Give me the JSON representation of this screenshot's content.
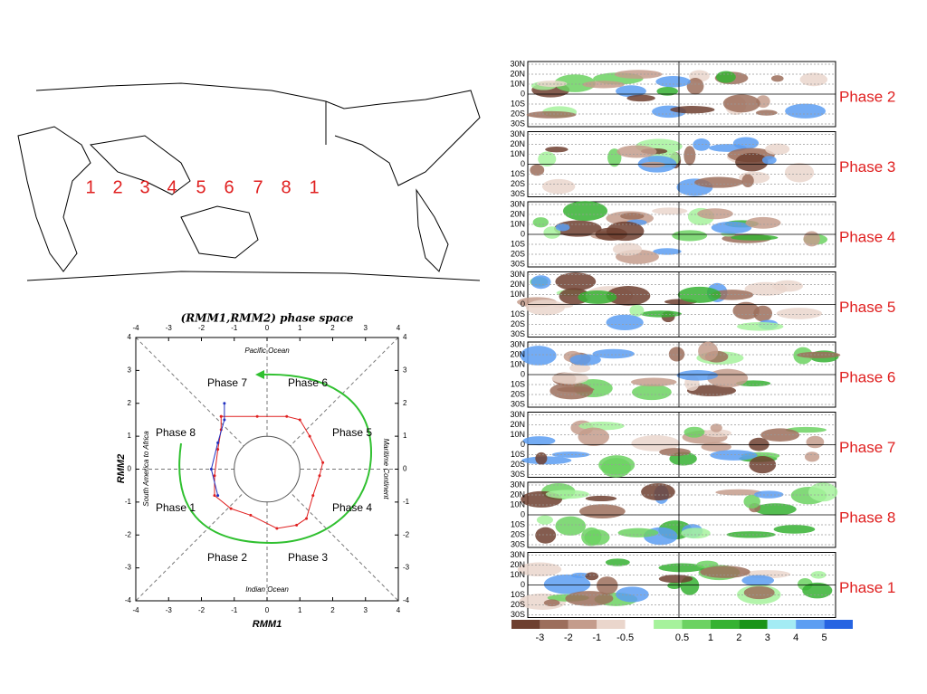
{
  "map_phase_numbers": [
    "1",
    "2",
    "3",
    "4",
    "5",
    "6",
    "7",
    "8",
    "1"
  ],
  "panel_labels": [
    "Phase 2",
    "Phase 3",
    "Phase 4",
    "Phase 5",
    "Phase 6",
    "Phase 7",
    "Phase 8",
    "Phase 1"
  ],
  "panel_lat_labels": [
    "30N",
    "20N",
    "10N",
    "0",
    "10S",
    "20S",
    "30S"
  ],
  "colorbar": {
    "labels": [
      -3,
      -2,
      -1,
      -0.5,
      0.5,
      1,
      2,
      3,
      4,
      5
    ],
    "colors": [
      "#6e4030",
      "#9c6e5c",
      "#c49c8c",
      "#ead6cc",
      "#ffffff",
      "#a6f29c",
      "#6cd262",
      "#36b232",
      "#1a9418",
      "#a4ecf4",
      "#5c9ef2",
      "#2664e2"
    ]
  },
  "chart_data": {
    "type": "line",
    "title": "(RMM1,RMM2) phase space",
    "x_label": "RMM1",
    "y_label": "RMM2",
    "xlim": [
      -4,
      4
    ],
    "ylim": [
      -4,
      4
    ],
    "xticks": [
      -4,
      -3,
      -2,
      -1,
      0,
      1,
      2,
      3,
      4
    ],
    "yticks": [
      -4,
      -3,
      -2,
      -1,
      0,
      1,
      2,
      3,
      4
    ],
    "phase_labels": [
      "Phase 1",
      "Phase 2",
      "Phase 3",
      "Phase 4",
      "Phase 5",
      "Phase 6",
      "Phase 7",
      "Phase 8"
    ],
    "region_labels": {
      "top": "Pacific Ocean",
      "bottom": "Indian Ocean",
      "right": "Maritime Continent",
      "left": "South America to Africa"
    },
    "series": [
      {
        "color": "#e02020",
        "x": [
          -1.4,
          -0.3,
          0.6,
          1.0,
          1.3,
          1.7,
          1.6,
          1.4,
          1.2,
          0.9,
          0.3,
          -0.5,
          -1.1,
          -1.6,
          -1.6,
          -1.5,
          -1.4,
          -1.4
        ],
        "values": [
          1.6,
          1.6,
          1.6,
          1.5,
          1.0,
          0.2,
          -0.2,
          -0.8,
          -1.5,
          -1.7,
          -1.8,
          -1.4,
          -1.2,
          -0.8,
          -0.2,
          0.6,
          1.2,
          1.6
        ]
      },
      {
        "color": "#2030c0",
        "x": [
          -1.5,
          -1.7,
          -1.5,
          -1.3,
          -1.3
        ],
        "values": [
          -0.8,
          0.0,
          0.8,
          1.5,
          2.0
        ]
      }
    ]
  }
}
